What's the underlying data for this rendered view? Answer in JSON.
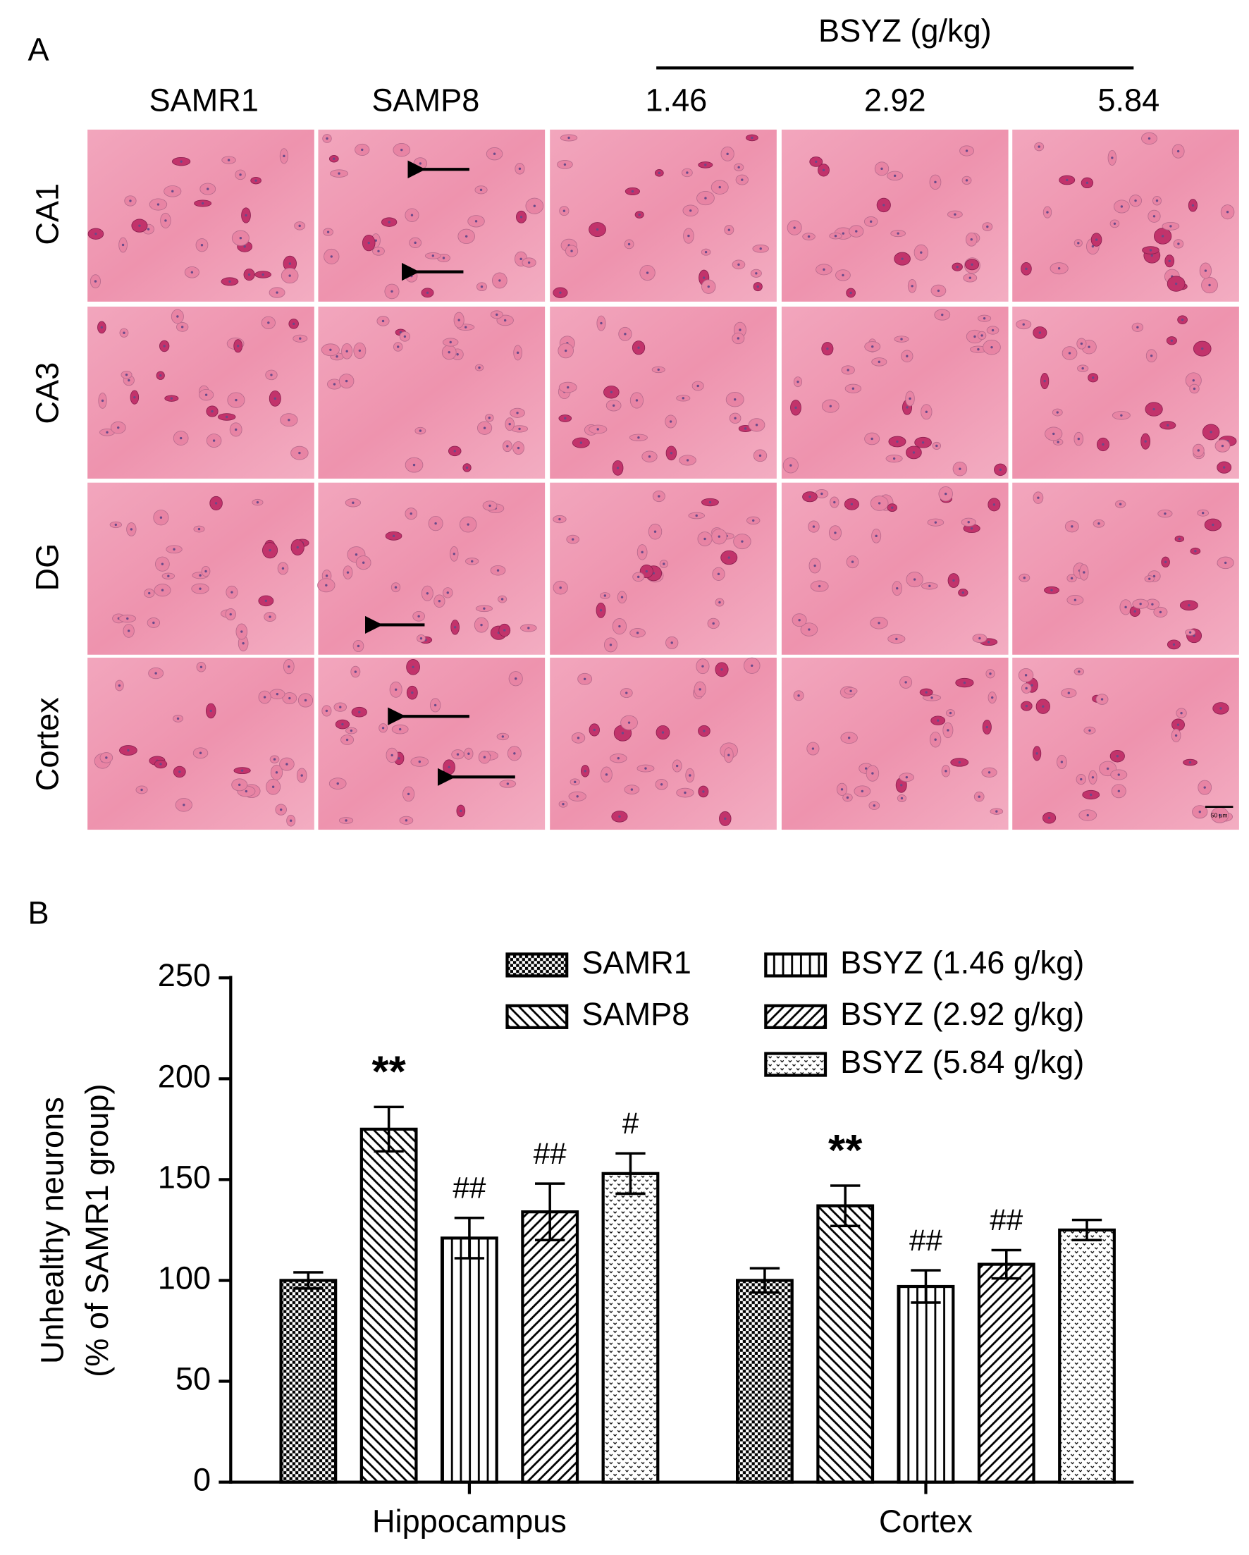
{
  "panel_a": {
    "label": "A",
    "group_label": "BSYZ (g/kg)",
    "columns": [
      "SAMR1",
      "SAMP8",
      "1.46",
      "2.92",
      "5.84"
    ],
    "rows": [
      "CA1",
      "CA3",
      "DG",
      "Cortex"
    ],
    "scale_bar": "50 μm"
  },
  "chart_data": {
    "type": "bar",
    "panel_label": "B",
    "ylabel": [
      "Unhealthy neurons",
      "(% of SAMR1 group)"
    ],
    "categories": [
      "Hippocampus",
      "Cortex"
    ],
    "ylim": [
      0,
      250
    ],
    "yticks": [
      0,
      50,
      100,
      150,
      200,
      250
    ],
    "series": [
      {
        "name": "SAMR1",
        "color": "#000000",
        "pattern": "crosshatch",
        "values": [
          100,
          100
        ],
        "errors": [
          4,
          6
        ]
      },
      {
        "name": "SAMP8",
        "color": "#000000",
        "pattern": "backslash",
        "values": [
          175,
          137
        ],
        "errors": [
          11,
          10
        ],
        "annotations": [
          "**",
          "**"
        ]
      },
      {
        "name": "BSYZ (1.46 g/kg)",
        "color": "#000000",
        "pattern": "vertical",
        "values": [
          121,
          97
        ],
        "errors": [
          10,
          8
        ],
        "annotations": [
          "##",
          "##"
        ]
      },
      {
        "name": "BSYZ (2.92 g/kg)",
        "color": "#000000",
        "pattern": "slash",
        "values": [
          134,
          108
        ],
        "errors": [
          14,
          7
        ],
        "annotations": [
          "##",
          "##"
        ]
      },
      {
        "name": "BSYZ (5.84 g/kg)",
        "color": "#000000",
        "pattern": "dots",
        "values": [
          153,
          125
        ],
        "errors": [
          10,
          5
        ],
        "annotations": [
          "#",
          null
        ]
      }
    ]
  }
}
